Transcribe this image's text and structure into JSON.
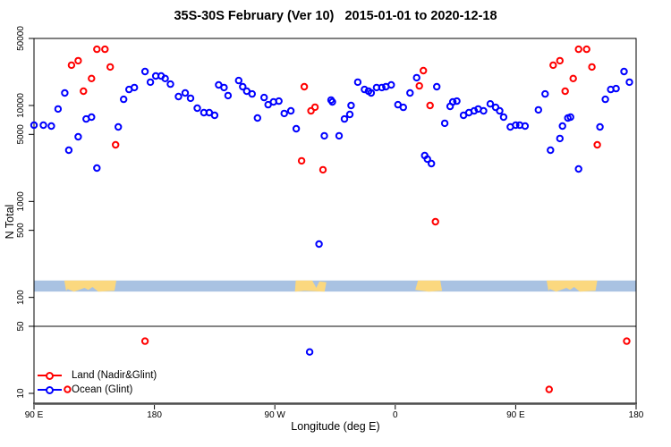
{
  "chart_data": {
    "type": "scatter",
    "title": "35S-30S February (Ver 10)   2015-01-01 to 2020-12-18",
    "xlabel": "Longitude (deg E)",
    "ylabel": "N Total",
    "x_axis": {
      "range_deg": [
        90,
        540
      ],
      "ticks": [
        90,
        180,
        270,
        360,
        450,
        540
      ],
      "tick_labels": [
        "90 E",
        "180",
        "90 W",
        "0",
        "90 E",
        "180"
      ],
      "note": "longitude wraps: 90E to 180 repeated at right edge"
    },
    "y_axis": {
      "scale": "log10",
      "ticks": [
        10,
        50,
        100,
        500,
        1000,
        5000,
        10000,
        50000
      ],
      "tick_labels": [
        "10",
        "50",
        "100",
        "500",
        "1000",
        "5000",
        "10000",
        "50000"
      ],
      "range": [
        8.5,
        60000
      ]
    },
    "reference_line_y": 50,
    "grid": false,
    "land_ocean_strip": {
      "description": "map band showing land(yellow)/ocean(blue) along longitude",
      "ocean_color": "#a9c2e2",
      "land_color": "#fbd87f",
      "n_range": [
        115,
        150
      ],
      "land_segments": [
        {
          "from": 112,
          "to": 151.5,
          "shape": "bight"
        },
        {
          "from": 285,
          "to": 308.5,
          "shape": "notch-top-right"
        },
        {
          "from": 375,
          "to": 395,
          "shape": "solid"
        },
        {
          "from": 472.5,
          "to": 511,
          "shape": "bight"
        }
      ]
    },
    "legend": {
      "position": "bottom-left",
      "box": false
    },
    "series": [
      {
        "name": "Ocean (Glint)",
        "color": "#0000ff",
        "marker": "open-circle",
        "points": [
          [
            90,
            6240
          ],
          [
            97,
            6240
          ],
          [
            103,
            6110
          ],
          [
            108,
            9200
          ],
          [
            113,
            13500
          ],
          [
            116,
            3420
          ],
          [
            123,
            4720
          ],
          [
            129,
            7240
          ],
          [
            133,
            7570
          ],
          [
            137,
            2230
          ],
          [
            153,
            5980
          ],
          [
            157,
            11600
          ],
          [
            161,
            14700
          ],
          [
            165,
            15400
          ],
          [
            173,
            22600
          ],
          [
            177,
            17500
          ],
          [
            181,
            20300
          ],
          [
            185,
            20300
          ],
          [
            188,
            19100
          ],
          [
            192,
            16700
          ],
          [
            198,
            12400
          ],
          [
            203,
            13500
          ],
          [
            207,
            11900
          ],
          [
            212,
            9380
          ],
          [
            217,
            8430
          ],
          [
            221,
            8430
          ],
          [
            225,
            7900
          ],
          [
            228,
            16400
          ],
          [
            232,
            15400
          ],
          [
            235,
            12700
          ],
          [
            243,
            18200
          ],
          [
            246,
            15700
          ],
          [
            249,
            14100
          ],
          [
            253,
            13200
          ],
          [
            257,
            7410
          ],
          [
            262,
            12100
          ],
          [
            265,
            10200
          ],
          [
            269,
            10900
          ],
          [
            273,
            11100
          ],
          [
            277,
            8260
          ],
          [
            282,
            8800
          ],
          [
            286,
            5730
          ],
          [
            296,
            27
          ],
          [
            303,
            360
          ],
          [
            307,
            4830
          ],
          [
            312,
            11400
          ],
          [
            313,
            10900
          ],
          [
            318,
            4830
          ],
          [
            322,
            7240
          ],
          [
            326,
            8070
          ],
          [
            327,
            10000
          ],
          [
            332,
            17500
          ],
          [
            337,
            14700
          ],
          [
            340,
            14100
          ],
          [
            342,
            13500
          ],
          [
            346,
            15400
          ],
          [
            350,
            15400
          ],
          [
            353,
            15700
          ],
          [
            357,
            16400
          ],
          [
            362,
            10200
          ],
          [
            366,
            9560
          ],
          [
            371,
            13500
          ],
          [
            376,
            19500
          ],
          [
            382,
            3010
          ],
          [
            384,
            2760
          ],
          [
            387,
            2480
          ],
          [
            391,
            15700
          ],
          [
            397,
            6520
          ],
          [
            401,
            9800
          ],
          [
            403,
            10900
          ],
          [
            406,
            11100
          ],
          [
            411,
            7900
          ],
          [
            415,
            8430
          ],
          [
            419,
            8800
          ],
          [
            422,
            9200
          ],
          [
            426,
            8800
          ],
          [
            431,
            10400
          ],
          [
            435,
            9560
          ],
          [
            438,
            8800
          ],
          [
            441,
            7570
          ],
          [
            446,
            5980
          ],
          [
            450,
            6240
          ],
          [
            453,
            6240
          ],
          [
            457,
            6110
          ],
          [
            467,
            9000
          ],
          [
            472,
            13200
          ],
          [
            476,
            3420
          ],
          [
            483,
            4530
          ],
          [
            485,
            6110
          ],
          [
            489,
            7410
          ],
          [
            491,
            7570
          ],
          [
            497,
            2180
          ],
          [
            513,
            5980
          ],
          [
            517,
            11600
          ],
          [
            521,
            14700
          ],
          [
            525,
            15000
          ],
          [
            531,
            22600
          ],
          [
            535,
            17500
          ]
        ]
      },
      {
        "name": "Land (Nadir&Glint)",
        "color": "#ff0000",
        "marker": "open-circle",
        "points": [
          [
            137,
            38600
          ],
          [
            143,
            38600
          ],
          [
            118,
            26300
          ],
          [
            123,
            29300
          ],
          [
            133,
            19100
          ],
          [
            127,
            14100
          ],
          [
            147,
            25200
          ],
          [
            151,
            3890
          ],
          [
            173,
            35
          ],
          [
            115,
            11
          ],
          [
            290,
            2650
          ],
          [
            292,
            15700
          ],
          [
            297,
            8800
          ],
          [
            300,
            9600
          ],
          [
            306,
            2140
          ],
          [
            378,
            16000
          ],
          [
            381,
            23100
          ],
          [
            386,
            10000
          ],
          [
            390,
            615
          ],
          [
            475,
            11
          ],
          [
            478,
            26300
          ],
          [
            483,
            29300
          ],
          [
            487,
            14100
          ],
          [
            493,
            19100
          ],
          [
            497,
            38600
          ],
          [
            503,
            38600
          ],
          [
            507,
            25200
          ],
          [
            511,
            3890
          ],
          [
            533,
            35
          ]
        ]
      }
    ]
  }
}
